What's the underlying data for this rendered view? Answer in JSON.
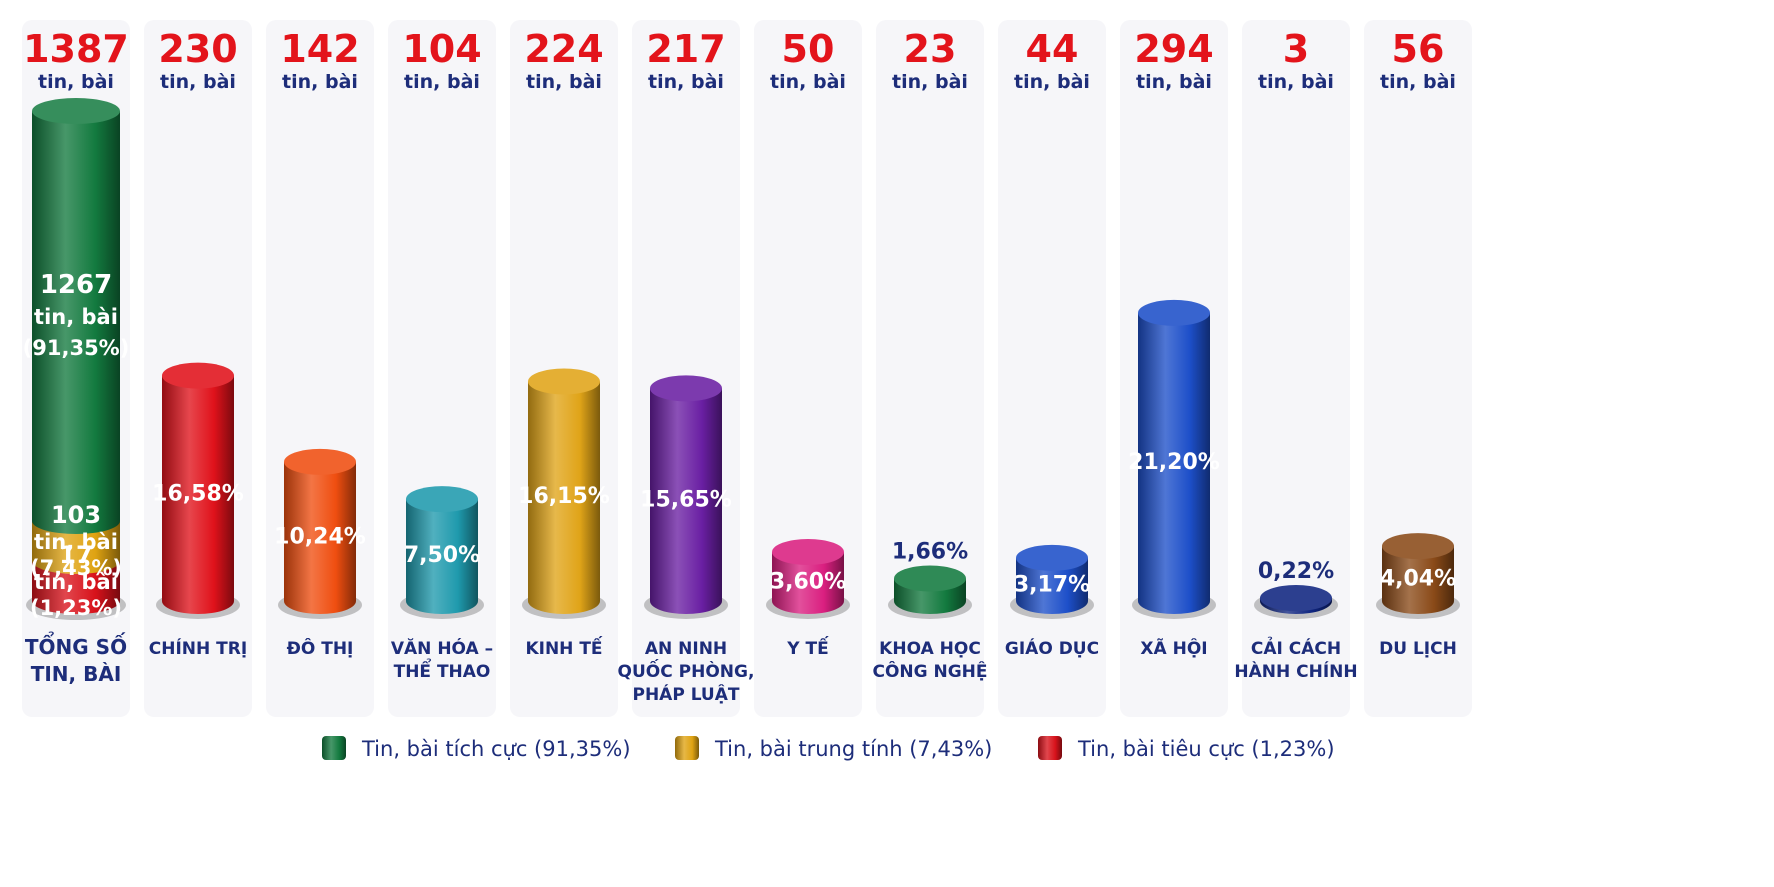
{
  "chart_data": {
    "type": "bar",
    "unit_label": "tin, bài",
    "total": {
      "category": [
        "TỔNG SỐ",
        "TIN, BÀI"
      ],
      "value": 1387,
      "segments": [
        {
          "series": "Tin, bài tích cực",
          "value": 1267,
          "value_text": "1267",
          "pct_text": "(91,35%)",
          "color": "#137a3f"
        },
        {
          "series": "Tin, bài trung tính",
          "value": 103,
          "value_text": "103",
          "pct_text": "(7,43%)",
          "color": "#dfa312"
        },
        {
          "series": "Tin, bài tiêu cực",
          "value": 17,
          "value_text": "17",
          "pct_text": "(1,23%)",
          "color": "#d8121b"
        }
      ]
    },
    "categories": [
      {
        "label": [
          "CHÍNH TRỊ"
        ],
        "value": 230,
        "value_text": "230",
        "pct_text": "16,58%",
        "color": "#e0121b"
      },
      {
        "label": [
          "ĐÔ THỊ"
        ],
        "value": 142,
        "value_text": "142",
        "pct_text": "10,24%",
        "color": "#ef4e10"
      },
      {
        "label": [
          "VĂN HÓA –",
          "THỂ THAO"
        ],
        "value": 104,
        "value_text": "104",
        "pct_text": "7,50%",
        "color": "#1f9aad"
      },
      {
        "label": [
          "KINH TẾ"
        ],
        "value": 224,
        "value_text": "224",
        "pct_text": "16,15%",
        "color": "#e0a418"
      },
      {
        "label": [
          "AN NINH",
          "QUỐC PHÒNG,",
          "PHÁP LUẬT"
        ],
        "value": 217,
        "value_text": "217",
        "pct_text": "15,65%",
        "color": "#6a1fa3"
      },
      {
        "label": [
          "Y TẾ"
        ],
        "value": 50,
        "value_text": "50",
        "pct_text": "3,60%",
        "color": "#da1f80"
      },
      {
        "label": [
          "KHOA HỌC",
          "CÔNG NGHỆ"
        ],
        "value": 23,
        "value_text": "23",
        "pct_text": "1,66%",
        "color": "#137a3f"
      },
      {
        "label": [
          "GIÁO DỤC"
        ],
        "value": 44,
        "value_text": "44",
        "pct_text": "3,17%",
        "color": "#1d4fc9"
      },
      {
        "label": [
          "XÃ HỘI"
        ],
        "value": 294,
        "value_text": "294",
        "pct_text": "21,20%",
        "color": "#1d4fc9"
      },
      {
        "label": [
          "CẢI CÁCH",
          "HÀNH CHÍNH"
        ],
        "value": 3,
        "value_text": "3",
        "pct_text": "0,22%",
        "color": "#0f2580"
      },
      {
        "label": [
          "DU LỊCH"
        ],
        "value": 56,
        "value_text": "56",
        "pct_text": "4,04%",
        "color": "#8a4a18"
      }
    ],
    "legend": [
      {
        "label": "Tin, bài tích cực (91,35%)",
        "color": "#137a3f"
      },
      {
        "label": "Tin, bài trung tính (7,43%)",
        "color": "#dfa312"
      },
      {
        "label": "Tin, bài tiêu cực (1,23%)",
        "color": "#d8121b"
      }
    ],
    "legend_placement": "bottom",
    "grid": false
  }
}
